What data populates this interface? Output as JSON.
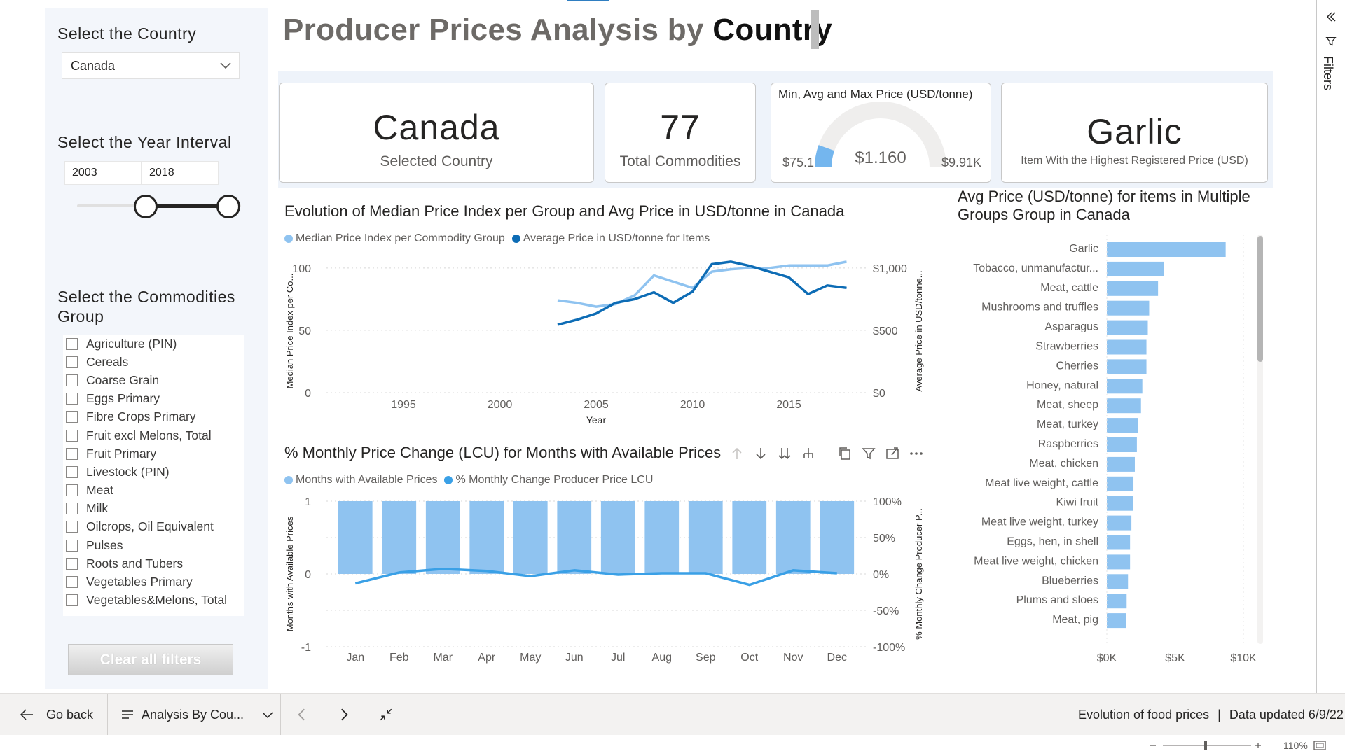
{
  "header": {
    "title_prefix": "Producer Prices Analysis by",
    "title_emph": "Country"
  },
  "slicers": {
    "country": {
      "title": "Select the Country",
      "value": "Canada"
    },
    "year": {
      "title": "Select the Year Interval",
      "from": "2003",
      "to": "2018"
    },
    "groups": {
      "title_line1": "Select the Commodities",
      "title_line2": "Group",
      "items": [
        "Agriculture (PIN)",
        "Cereals",
        "Coarse Grain",
        "Eggs Primary",
        "Fibre Crops Primary",
        "Fruit excl Melons, Total",
        "Fruit Primary",
        "Livestock (PIN)",
        "Meat",
        "Milk",
        "Oilcrops, Oil Equivalent",
        "Pulses",
        "Roots and Tubers",
        "Vegetables Primary",
        "Vegetables&Melons, Total"
      ]
    },
    "clear_label": "Clear all filters"
  },
  "cards": {
    "country": {
      "value": "Canada",
      "label": "Selected Country"
    },
    "commodities": {
      "value": "77",
      "label": "Total Commodities"
    },
    "gauge": {
      "title": "Min, Avg and Max Price (USD/tonne)",
      "min": "$75.1",
      "avg": "$1.160",
      "max": "$9.91K",
      "fill_fraction": 0.11
    },
    "top_item": {
      "value": "Garlic",
      "label": "Item With the Highest Registered Price (USD)"
    }
  },
  "line_chart": {
    "title": "Evolution of Median Price Index per Group and Avg Price in USD/tonne in Canada",
    "legend": [
      "Median Price Index per Commodity Group",
      "Average Price in USD/tonne for Items"
    ],
    "y_left_label": "Median Price Index per Co...",
    "y_right_label": "Average Price in USD/tonne...",
    "x_label": "Year",
    "y_left_ticks": [
      "100",
      "50",
      "0"
    ],
    "y_right_ticks": [
      "$1,000",
      "$500",
      "$0"
    ],
    "x_ticks": [
      "1995",
      "2000",
      "2005",
      "2010",
      "2015"
    ]
  },
  "combo_chart": {
    "title": "% Monthly Price Change (LCU) for Months with Available Prices",
    "legend": [
      "Months with Available Prices",
      "% Monthly Change Producer Price LCU"
    ],
    "y_left_label": "Months with Available Prices",
    "y_right_label": "% Monthly Change Producer P...",
    "y_left_ticks": [
      "1",
      "0",
      "-1"
    ],
    "y_right_ticks": [
      "100%",
      "50%",
      "0%",
      "-50%",
      "-100%"
    ],
    "months": [
      "Jan",
      "Feb",
      "Mar",
      "Apr",
      "May",
      "Jun",
      "Jul",
      "Aug",
      "Sep",
      "Oct",
      "Nov",
      "Dec"
    ]
  },
  "bar_chart": {
    "title_line1": "Avg Price (USD/tonne) for items in Multiple",
    "title_line2": "Groups Group in Canada",
    "x_ticks": [
      "$0K",
      "$5K",
      "$10K"
    ]
  },
  "chart_data": [
    {
      "type": "line",
      "title": "Evolution of Median Price Index per Group and Avg Price in USD/tonne in Canada",
      "xlabel": "Year",
      "ylabel": "Median Price Index per Co...",
      "y2label": "Average Price in USD/tonne...",
      "xlim": [
        1991,
        2019
      ],
      "ylim": [
        0,
        110
      ],
      "y2lim": [
        0,
        1100
      ],
      "x": [
        2003,
        2004,
        2005,
        2006,
        2007,
        2008,
        2009,
        2010,
        2011,
        2012,
        2013,
        2014,
        2015,
        2016,
        2017,
        2018
      ],
      "series": [
        {
          "name": "Median Price Index per Commodity Group",
          "axis": "left",
          "color": "#8fc3f0",
          "values": [
            74,
            72,
            69,
            71,
            78,
            94,
            89,
            84,
            97,
            99,
            100,
            100,
            102,
            102,
            102,
            105
          ]
        },
        {
          "name": "Average Price in USD/tonne for Items",
          "axis": "right",
          "color": "#0d6cb5",
          "values": [
            545,
            585,
            635,
            720,
            750,
            805,
            720,
            810,
            1030,
            1050,
            1015,
            970,
            925,
            790,
            860,
            840
          ]
        }
      ]
    },
    {
      "type": "bar",
      "title": "% Monthly Price Change (LCU) for Months with Available Prices",
      "ylabel": "Months with Available Prices",
      "y2label": "% Monthly Change Producer P...",
      "categories": [
        "Jan",
        "Feb",
        "Mar",
        "Apr",
        "May",
        "Jun",
        "Jul",
        "Aug",
        "Sep",
        "Oct",
        "Nov",
        "Dec"
      ],
      "ylim": [
        -1,
        1
      ],
      "y2lim": [
        -100,
        100
      ],
      "series": [
        {
          "name": "Months with Available Prices",
          "type": "bar",
          "axis": "left",
          "color": "#8fc3f0",
          "values": [
            1,
            1,
            1,
            1,
            1,
            1,
            1,
            1,
            1,
            1,
            1,
            1
          ]
        },
        {
          "name": "% Monthly Change Producer Price LCU",
          "type": "line",
          "axis": "right",
          "color": "#3aa0e6",
          "values": [
            -13,
            2,
            7,
            4,
            -3,
            5,
            -1,
            1,
            1,
            -15,
            5,
            1
          ]
        }
      ]
    },
    {
      "type": "bar",
      "orientation": "horizontal",
      "title": "Avg Price (USD/tonne) for items in Multiple Groups Group in Canada",
      "xlim": [
        0,
        11000
      ],
      "categories": [
        "Garlic",
        "Tobacco, unmanufactur...",
        "Meat, cattle",
        "Mushrooms and truffles",
        "Asparagus",
        "Strawberries",
        "Cherries",
        "Honey, natural",
        "Meat, sheep",
        "Meat, turkey",
        "Raspberries",
        "Meat, chicken",
        "Meat live weight, cattle",
        "Kiwi fruit",
        "Meat live weight, turkey",
        "Eggs, hen, in shell",
        "Meat live weight, chicken",
        "Blueberries",
        "Plums and sloes",
        "Meat, pig"
      ],
      "values": [
        8700,
        4200,
        3750,
        3100,
        3000,
        2900,
        2900,
        2600,
        2500,
        2300,
        2200,
        2050,
        1950,
        1900,
        1800,
        1700,
        1700,
        1550,
        1450,
        1400
      ],
      "color": "#8fc3f0"
    }
  ],
  "colors": {
    "accent_light": "#8fc3f0",
    "accent_dark": "#0d6cb5",
    "line_light": "#3aa0e6"
  },
  "bottom_bar": {
    "go_back": "Go back",
    "page_name": "Analysis By Cou...",
    "report_info": "Evolution of food prices",
    "updated": "Data updated 6/9/22",
    "zoom": "110%"
  },
  "filters_label": "Filters"
}
